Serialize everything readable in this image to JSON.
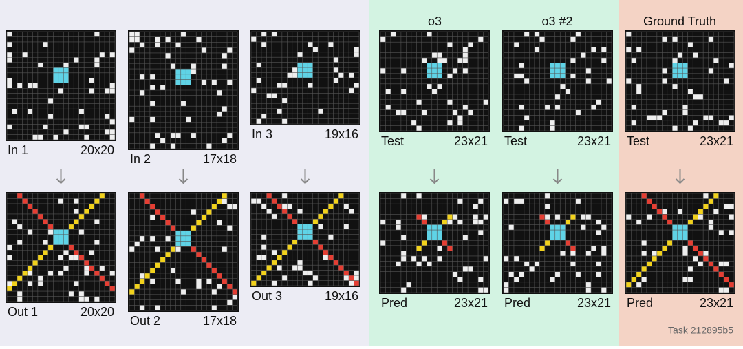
{
  "header": {
    "models": [
      "o3",
      "o3 #2",
      "Ground Truth"
    ]
  },
  "examples": [
    {
      "input": {
        "label": "In 1",
        "size": "20x20"
      },
      "output": {
        "label": "Out 1",
        "size": "20x20"
      }
    },
    {
      "input": {
        "label": "In 2",
        "size": "17x18"
      },
      "output": {
        "label": "Out 2",
        "size": "17x18"
      }
    },
    {
      "input": {
        "label": "In 3",
        "size": "19x16"
      },
      "output": {
        "label": "Out 3",
        "size": "19x16"
      }
    }
  ],
  "test": [
    {
      "input": {
        "label": "Test",
        "size": "23x21"
      },
      "output": {
        "label": "Pred",
        "size": "23x21"
      }
    },
    {
      "input": {
        "label": "Test",
        "size": "23x21"
      },
      "output": {
        "label": "Pred",
        "size": "23x21"
      }
    },
    {
      "input": {
        "label": "Test",
        "size": "23x21"
      },
      "output": {
        "label": "Pred",
        "size": "23x21"
      }
    }
  ],
  "footer": "Task 212895b5"
}
